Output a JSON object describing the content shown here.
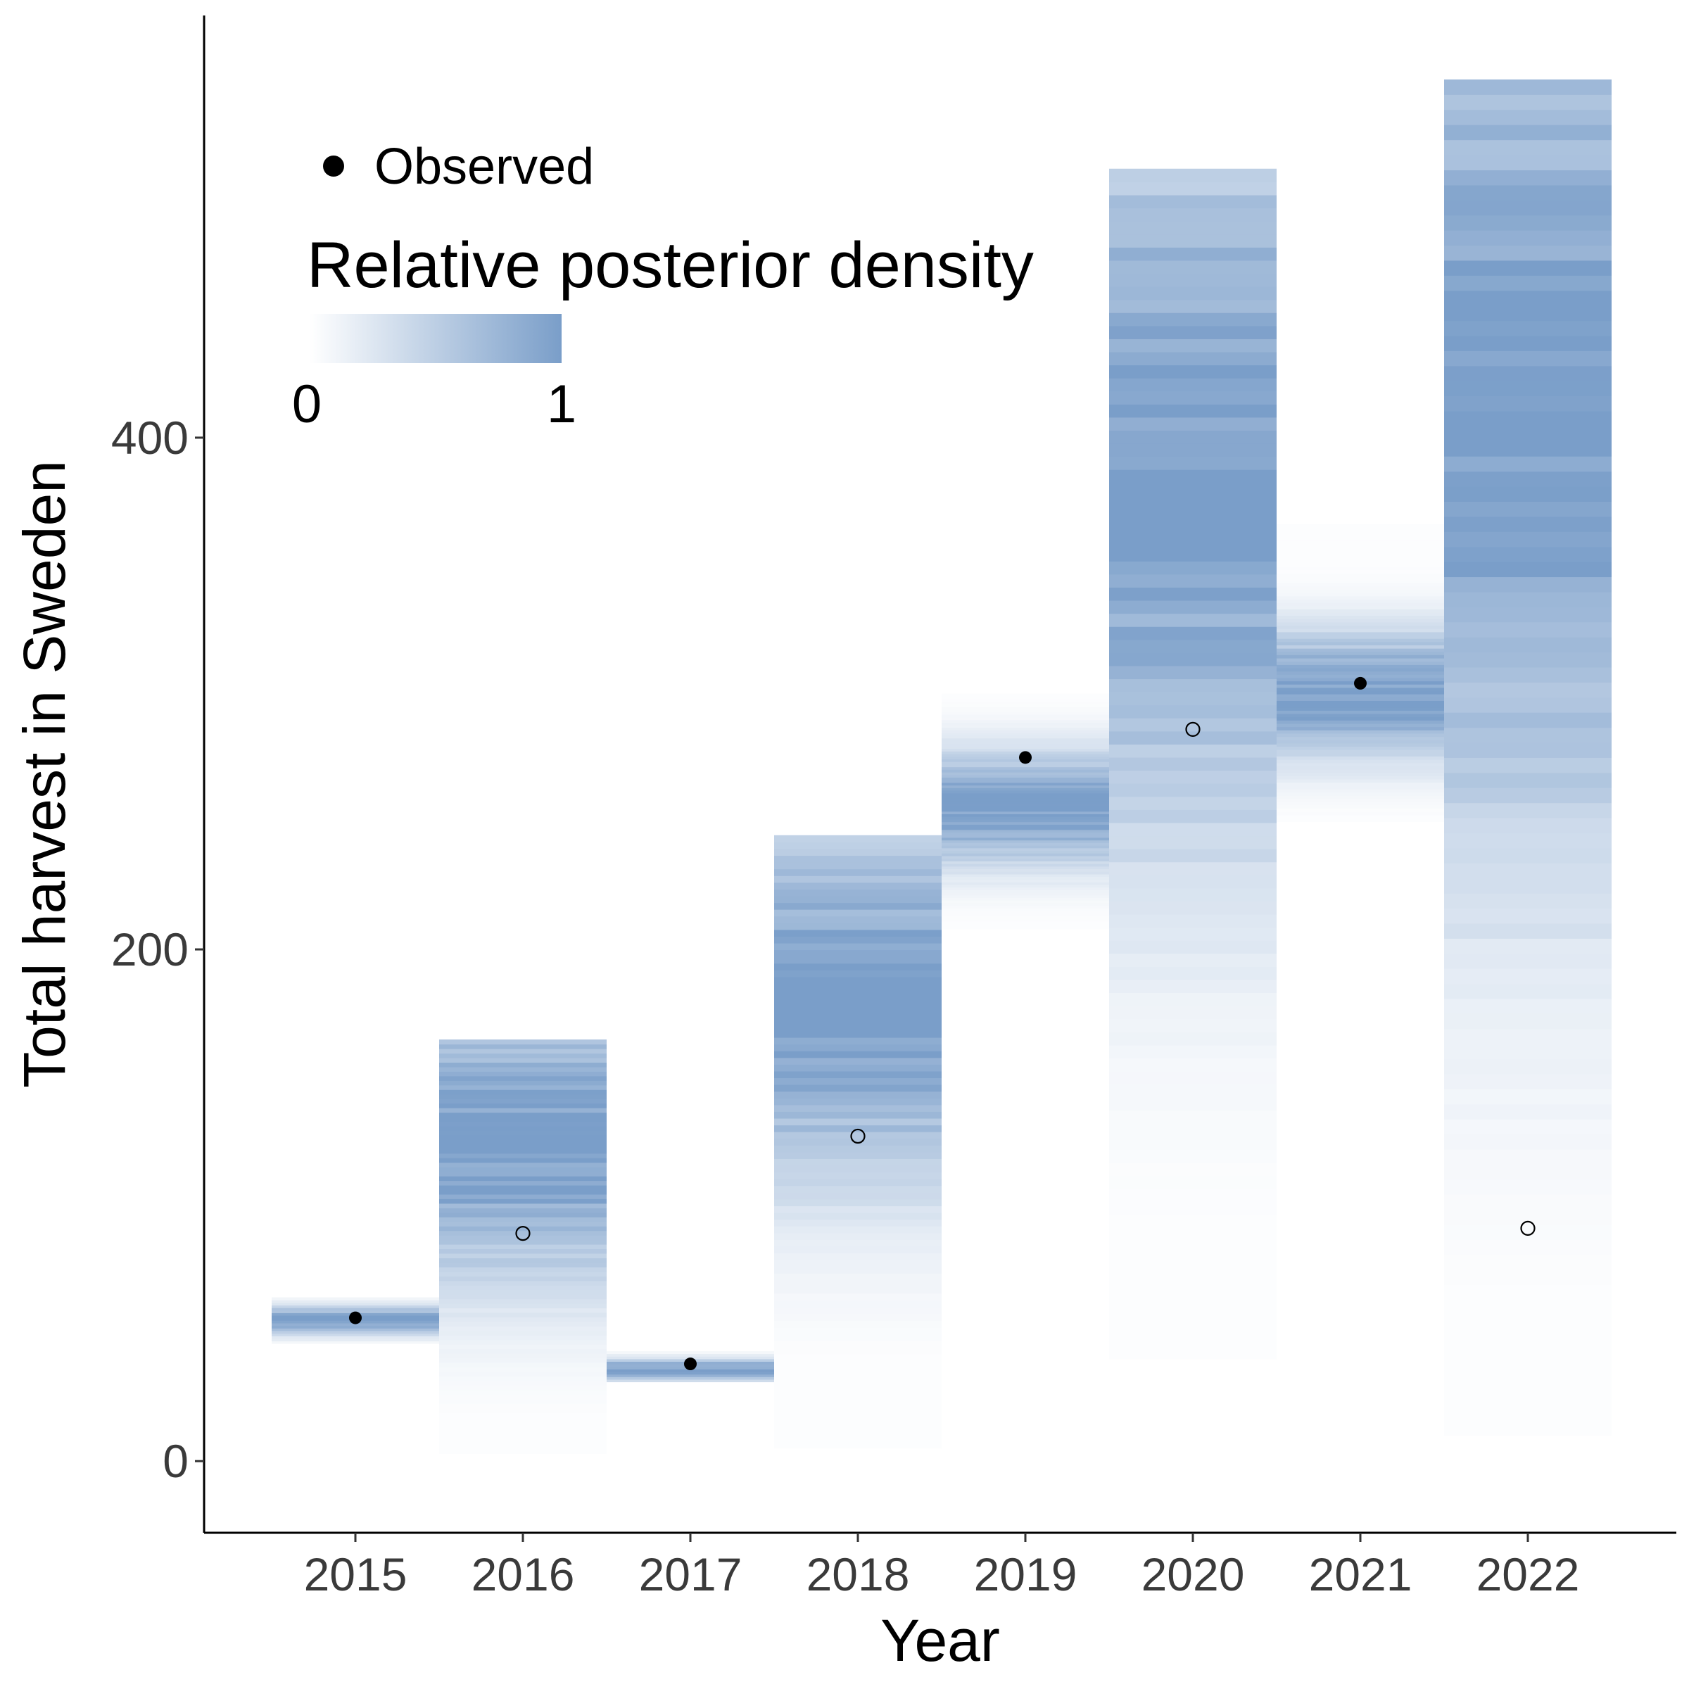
{
  "chart_data": {
    "type": "heatmap",
    "title": "",
    "xlabel": "Year",
    "ylabel": "Total harvest in Sweden",
    "x": [
      "2015",
      "2016",
      "2017",
      "2018",
      "2019",
      "2020",
      "2021",
      "2022"
    ],
    "ylim": [
      -28,
      565
    ],
    "y_ticks": [
      0,
      200,
      400
    ],
    "grid": false,
    "legend_placement": "top-left",
    "legend": {
      "points_label": "Observed",
      "colorbar_title": "Relative posterior density",
      "colorbar_min_label": "0",
      "colorbar_max_label": "1"
    },
    "colors": {
      "density_high": "#7a9ec9",
      "density_low": "#ffffff",
      "point": "#000000"
    },
    "posterior_density": [
      {
        "year": "2015",
        "peak": 55,
        "spread": 4,
        "range": [
          46,
          64
        ]
      },
      {
        "year": "2016",
        "peak": 125,
        "spread": 40,
        "range": [
          3,
          163
        ]
      },
      {
        "year": "2017",
        "peak": 36,
        "spread": 3,
        "range": [
          31,
          43
        ]
      },
      {
        "year": "2018",
        "peak": 180,
        "spread": 52,
        "range": [
          5,
          242
        ]
      },
      {
        "year": "2019",
        "peak": 255,
        "spread": 16,
        "range": [
          208,
          300
        ]
      },
      {
        "year": "2020",
        "peak": 385,
        "spread": 105,
        "range": [
          40,
          500
        ]
      },
      {
        "year": "2021",
        "peak": 300,
        "spread": 18,
        "range": [
          250,
          365
        ]
      },
      {
        "year": "2022",
        "peak": 415,
        "spread": 130,
        "range": [
          10,
          540
        ]
      }
    ],
    "series": [
      {
        "name": "Observed",
        "points": [
          {
            "year": "2015",
            "value": 56,
            "observed": true
          },
          {
            "year": "2016",
            "value": 89,
            "observed": false
          },
          {
            "year": "2017",
            "value": 38,
            "observed": true
          },
          {
            "year": "2018",
            "value": 127,
            "observed": false
          },
          {
            "year": "2019",
            "value": 275,
            "observed": true
          },
          {
            "year": "2020",
            "value": 286,
            "observed": false
          },
          {
            "year": "2021",
            "value": 304,
            "observed": true
          },
          {
            "year": "2022",
            "value": 91,
            "observed": false
          }
        ]
      }
    ]
  }
}
